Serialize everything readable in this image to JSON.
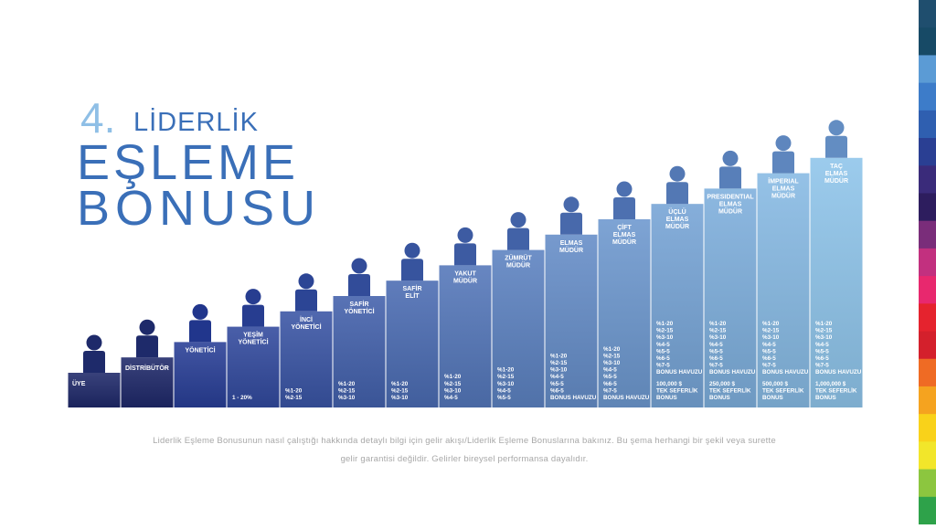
{
  "header": {
    "number": "4.",
    "line1": "LİDERLİK",
    "line2": "EŞLEME",
    "line3": "BONUSU"
  },
  "levels": [
    {
      "name": [
        "ÜYE"
      ],
      "details": []
    },
    {
      "name": [
        "DİSTRİBÜTÖR"
      ],
      "details": []
    },
    {
      "name": [
        "YÖNETİCİ"
      ],
      "details": []
    },
    {
      "name": [
        "YEŞİM",
        "YÖNETİCİ"
      ],
      "details": [
        [
          "1 - 20%"
        ]
      ]
    },
    {
      "name": [
        "İNCİ",
        "YÖNETİCİ"
      ],
      "details": [
        [
          "%1-20",
          "%2-15"
        ]
      ]
    },
    {
      "name": [
        "SAFİR",
        "YÖNETİCİ"
      ],
      "details": [
        [
          "%1-20",
          "%2-15",
          "%3-10"
        ]
      ]
    },
    {
      "name": [
        "SAFİR",
        "ELİT"
      ],
      "details": [
        [
          "%1-20",
          "%2-15",
          "%3-10"
        ]
      ]
    },
    {
      "name": [
        "YAKUT",
        "MÜDÜR"
      ],
      "details": [
        [
          "%1-20",
          "%2-15",
          "%3-10",
          "%4-5"
        ]
      ]
    },
    {
      "name": [
        "ZÜMRÜT",
        "MÜDÜR"
      ],
      "details": [
        [
          "%1-20",
          "%2-15",
          "%3-10",
          "%4-5",
          "%5-5"
        ]
      ]
    },
    {
      "name": [
        "ELMAS",
        "MÜDÜR"
      ],
      "details": [
        [
          "%1-20",
          "%2-15",
          "%3-10",
          "%4-5",
          "%5-5",
          "%6-5",
          "BONUS HAVUZU"
        ]
      ]
    },
    {
      "name": [
        "ÇİFT",
        "ELMAS",
        "MÜDÜR"
      ],
      "details": [
        [
          "%1-20",
          "%2-15",
          "%3-10",
          "%4-5",
          "%5-5",
          "%6-5",
          "%7-5",
          "BONUS HAVUZU"
        ]
      ]
    },
    {
      "name": [
        "ÜÇLÜ",
        "ELMAS",
        "MÜDÜR"
      ],
      "details": [
        [
          "%1-20",
          "%2-15",
          "%3-10",
          "%4-5",
          "%5-5",
          "%6-5",
          "%7-5",
          "BONUS HAVUZU"
        ],
        [
          "100,000 $",
          "TEK SEFERLİK",
          "BONUS"
        ]
      ]
    },
    {
      "name": [
        "PRESIDENTIAL",
        "ELMAS",
        "MÜDÜR"
      ],
      "details": [
        [
          "%1-20",
          "%2-15",
          "%3-10",
          "%4-5",
          "%5-5",
          "%6-5",
          "%7-5",
          "BONUS HAVUZU"
        ],
        [
          "250,000 $",
          "TEK SEFERLİK",
          "BONUS"
        ]
      ]
    },
    {
      "name": [
        "İMPERIAL",
        "ELMAS",
        "MÜDÜR"
      ],
      "details": [
        [
          "%1-20",
          "%2-15",
          "%3-10",
          "%4-5",
          "%5-5",
          "%6-5",
          "%7-5",
          "BONUS HAVUZU"
        ],
        [
          "500,000 $",
          "TEK SEFERLİK",
          "BONUS"
        ]
      ]
    },
    {
      "name": [
        "TAÇ",
        "ELMAS",
        "MÜDÜR"
      ],
      "details": [
        [
          "%1-20",
          "%2-15",
          "%3-10",
          "%4-5",
          "%5-5",
          "%6-5",
          "%7-5",
          "BONUS HAVUZU"
        ],
        [
          "1,000,000 $",
          "TEK SEFERLİK",
          "BONUS"
        ]
      ]
    }
  ],
  "footer": {
    "line1": "Liderlik Eşleme Bonusunun nasıl çalıştığı hakkında detaylı bilgi için gelir akışı/Liderlik Eşleme Bonuslarına bakınız. Bu şema herhangi bir şekil veya surette",
    "line2": "gelir garantisi değildir. Gelirler bireysel performansa dayalıdır."
  }
}
